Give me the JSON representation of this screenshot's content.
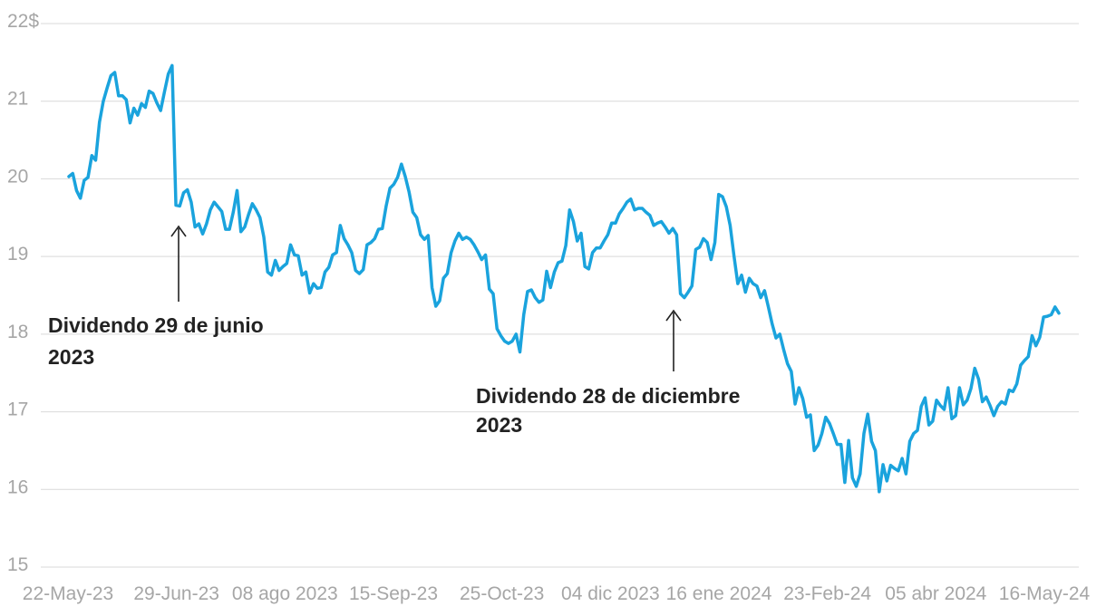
{
  "chart_data": {
    "type": "line",
    "title": "",
    "xlabel": "",
    "ylabel": "",
    "ylim": [
      15,
      22
    ],
    "yticks": [
      "15",
      "16",
      "17",
      "18",
      "19",
      "20",
      "21",
      "22$"
    ],
    "xticks": [
      "22-May-23",
      "29-Jun-23",
      "08 ago 2023",
      "15-Sep-23",
      "25-Oct-23",
      "04 dic 2023",
      "16 ene 2024",
      "23-Feb-24",
      "05 abr 2024",
      "16-May-24"
    ],
    "grid": true,
    "colors": {
      "line": "#1aa3dd",
      "grid": "#d9d9d9",
      "tick": "#a6a6a6",
      "annotation": "#222222"
    },
    "series": [
      {
        "values": [
          20.03,
          20.07,
          19.85,
          19.75,
          19.98,
          20.02,
          20.3,
          20.24,
          20.73,
          21.0,
          21.17,
          21.33,
          21.37,
          21.07,
          21.07,
          21.02,
          20.72,
          20.91,
          20.82,
          20.97,
          20.92,
          21.13,
          21.1,
          20.98,
          20.88,
          21.12,
          21.35,
          21.46,
          19.66,
          19.65,
          19.82,
          19.86,
          19.7,
          19.38,
          19.42,
          19.29,
          19.42,
          19.6,
          19.7,
          19.64,
          19.58,
          19.35,
          19.35,
          19.57,
          19.85,
          19.32,
          19.38,
          19.54,
          19.68,
          19.6,
          19.5,
          19.25,
          18.8,
          18.76,
          18.95,
          18.82,
          18.87,
          18.91,
          19.15,
          19.02,
          19.01,
          18.76,
          18.8,
          18.53,
          18.65,
          18.59,
          18.6,
          18.8,
          18.86,
          19.02,
          19.05,
          19.4,
          19.23,
          19.15,
          19.05,
          18.82,
          18.78,
          18.83,
          19.15,
          19.18,
          19.23,
          19.35,
          19.36,
          19.65,
          19.88,
          19.93,
          20.02,
          20.19,
          20.03,
          19.83,
          19.57,
          19.5,
          19.28,
          19.22,
          19.27,
          18.6,
          18.36,
          18.43,
          18.72,
          18.78,
          19.05,
          19.2,
          19.3,
          19.22,
          19.25,
          19.22,
          19.15,
          19.06,
          18.96,
          19.02,
          18.58,
          18.52,
          18.07,
          17.98,
          17.91,
          17.88,
          17.91,
          18.0,
          17.77,
          18.25,
          18.55,
          18.57,
          18.47,
          18.41,
          18.44,
          18.81,
          18.6,
          18.8,
          18.92,
          18.94,
          19.14,
          19.6,
          19.45,
          19.2,
          19.3,
          18.87,
          18.84,
          19.05,
          19.11,
          19.11,
          19.2,
          19.28,
          19.43,
          19.43,
          19.55,
          19.62,
          19.7,
          19.74,
          19.6,
          19.62,
          19.62,
          19.57,
          19.53,
          19.4,
          19.43,
          19.45,
          19.38,
          19.3,
          19.36,
          19.28,
          18.52,
          18.47,
          18.54,
          18.62,
          19.09,
          19.12,
          19.23,
          19.18,
          18.96,
          19.18,
          19.8,
          19.77,
          19.64,
          19.4,
          19.01,
          18.65,
          18.76,
          18.54,
          18.72,
          18.65,
          18.62,
          18.47,
          18.56,
          18.35,
          18.13,
          17.95,
          18.0,
          17.8,
          17.62,
          17.52,
          17.1,
          17.31,
          17.17,
          16.93,
          16.96,
          16.5,
          16.57,
          16.72,
          16.93,
          16.85,
          16.72,
          16.58,
          16.58,
          16.09,
          16.63,
          16.15,
          16.04,
          16.2,
          16.72,
          16.97,
          16.62,
          16.5,
          15.97,
          16.32,
          16.11,
          16.31,
          16.27,
          16.24,
          16.4,
          16.2,
          16.62,
          16.72,
          16.76,
          17.07,
          17.18,
          16.83,
          16.88,
          17.15,
          17.08,
          17.03,
          17.31,
          16.91,
          16.95,
          17.31,
          17.09,
          17.15,
          17.3,
          17.56,
          17.42,
          17.13,
          17.19,
          17.08,
          16.95,
          17.07,
          17.13,
          17.1,
          17.28,
          17.26,
          17.36,
          17.6,
          17.66,
          17.71,
          17.98,
          17.85,
          17.96,
          18.22,
          18.23,
          18.25,
          18.35,
          18.27
        ]
      }
    ],
    "annotations": [
      {
        "label": "annotation_1",
        "line1": "Dividendo 29 de junio",
        "line2": "2023",
        "point_index": 28
      },
      {
        "label": "annotation_2",
        "line1": "Dividendo 28 de diciembre",
        "line2": "2023",
        "point_index": 161
      }
    ]
  }
}
